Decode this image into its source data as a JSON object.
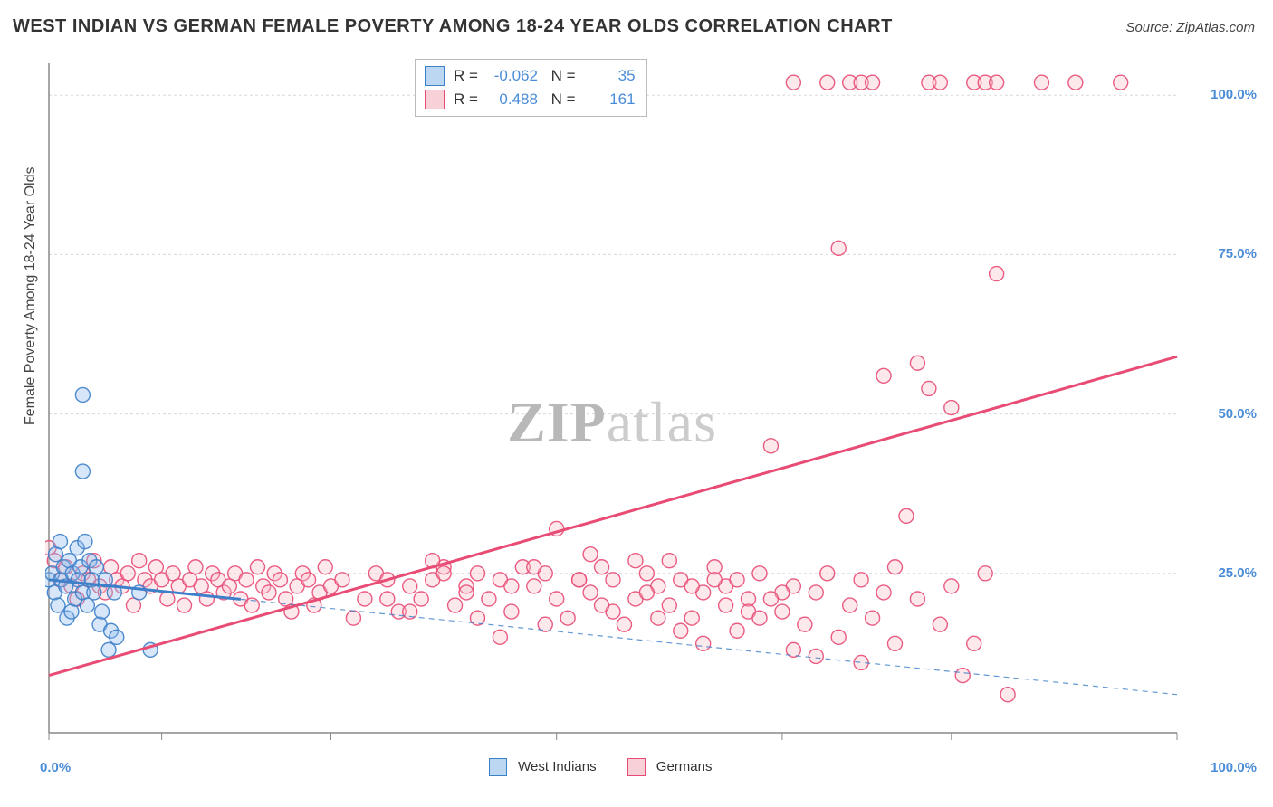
{
  "title": "WEST INDIAN VS GERMAN FEMALE POVERTY AMONG 18-24 YEAR OLDS CORRELATION CHART",
  "source": "Source: ZipAtlas.com",
  "ylabel": "Female Poverty Among 18-24 Year Olds",
  "watermark_a": "ZIP",
  "watermark_b": "atlas",
  "chart": {
    "type": "scatter",
    "xlim": [
      0,
      100
    ],
    "ylim": [
      0,
      105
    ],
    "x_ticks": [
      0,
      10,
      25,
      45,
      65,
      80,
      100
    ],
    "x_tick_labels": {
      "0": "0.0%",
      "100": "100.0%"
    },
    "y_ticks": [
      25,
      50,
      75,
      100
    ],
    "y_tick_labels": {
      "25": "25.0%",
      "50": "50.0%",
      "75": "75.0%",
      "100": "100.0%"
    },
    "grid_color": "#d8d8d8",
    "axis_color": "#888",
    "background_color": "#ffffff",
    "marker_radius": 8,
    "marker_opacity": 0.35,
    "series": [
      {
        "name": "West Indians",
        "label": "West Indians",
        "fill": "#8cb9ed",
        "stroke": "#3d7fc9",
        "swatch_fill": "#bcd7f2",
        "swatch_stroke": "#3d7fc9",
        "R": "-0.062",
        "N": "35",
        "trend": {
          "x1": 0,
          "y1": 24,
          "x2": 100,
          "y2": 6,
          "solid_to_x": 17,
          "stroke_width": 3
        },
        "points": [
          [
            0,
            24
          ],
          [
            0.3,
            25
          ],
          [
            0.5,
            22
          ],
          [
            0.6,
            28
          ],
          [
            0.8,
            20
          ],
          [
            1,
            30
          ],
          [
            1.1,
            24
          ],
          [
            1.3,
            26
          ],
          [
            1.5,
            23
          ],
          [
            1.6,
            18
          ],
          [
            1.8,
            27
          ],
          [
            2,
            19
          ],
          [
            2.1,
            25
          ],
          [
            2.3,
            21
          ],
          [
            2.5,
            29
          ],
          [
            2.6,
            24
          ],
          [
            2.8,
            26
          ],
          [
            3,
            22
          ],
          [
            3.2,
            30
          ],
          [
            3.4,
            20
          ],
          [
            3.6,
            27
          ],
          [
            3.8,
            24
          ],
          [
            4,
            22
          ],
          [
            4.2,
            26
          ],
          [
            4.5,
            17
          ],
          [
            4.7,
            19
          ],
          [
            5,
            24
          ],
          [
            5.3,
            13
          ],
          [
            5.5,
            16
          ],
          [
            5.8,
            22
          ],
          [
            3,
            41
          ],
          [
            3,
            53
          ],
          [
            9,
            13
          ],
          [
            6,
            15
          ],
          [
            8,
            22
          ]
        ]
      },
      {
        "name": "Germans",
        "label": "Germans",
        "fill": "#f8bcc8",
        "stroke": "#e84b74",
        "swatch_fill": "#f8d0d8",
        "swatch_stroke": "#e84b74",
        "R": "0.488",
        "N": "161",
        "trend": {
          "x1": 0,
          "y1": 9,
          "x2": 100,
          "y2": 59,
          "solid_to_x": 100,
          "stroke_width": 3
        },
        "points": [
          [
            0,
            29
          ],
          [
            0.5,
            27
          ],
          [
            1,
            24
          ],
          [
            1.5,
            26
          ],
          [
            2,
            23
          ],
          [
            2.5,
            21
          ],
          [
            3,
            25
          ],
          [
            3.5,
            24
          ],
          [
            4,
            27
          ],
          [
            4.5,
            23
          ],
          [
            5,
            22
          ],
          [
            5.5,
            26
          ],
          [
            6,
            24
          ],
          [
            6.5,
            23
          ],
          [
            7,
            25
          ],
          [
            7.5,
            20
          ],
          [
            8,
            27
          ],
          [
            8.5,
            24
          ],
          [
            9,
            23
          ],
          [
            9.5,
            26
          ],
          [
            10,
            24
          ],
          [
            10.5,
            21
          ],
          [
            11,
            25
          ],
          [
            11.5,
            23
          ],
          [
            12,
            20
          ],
          [
            12.5,
            24
          ],
          [
            13,
            26
          ],
          [
            13.5,
            23
          ],
          [
            14,
            21
          ],
          [
            14.5,
            25
          ],
          [
            15,
            24
          ],
          [
            15.5,
            22
          ],
          [
            16,
            23
          ],
          [
            16.5,
            25
          ],
          [
            17,
            21
          ],
          [
            17.5,
            24
          ],
          [
            18,
            20
          ],
          [
            18.5,
            26
          ],
          [
            19,
            23
          ],
          [
            19.5,
            22
          ],
          [
            20,
            25
          ],
          [
            20.5,
            24
          ],
          [
            21,
            21
          ],
          [
            21.5,
            19
          ],
          [
            22,
            23
          ],
          [
            22.5,
            25
          ],
          [
            23,
            24
          ],
          [
            23.5,
            20
          ],
          [
            24,
            22
          ],
          [
            24.5,
            26
          ],
          [
            25,
            23
          ],
          [
            26,
            24
          ],
          [
            27,
            18
          ],
          [
            28,
            21
          ],
          [
            29,
            25
          ],
          [
            30,
            24
          ],
          [
            31,
            19
          ],
          [
            32,
            23
          ],
          [
            33,
            21
          ],
          [
            34,
            24
          ],
          [
            35,
            26
          ],
          [
            36,
            20
          ],
          [
            37,
            23
          ],
          [
            38,
            25
          ],
          [
            39,
            21
          ],
          [
            40,
            24
          ],
          [
            41,
            19
          ],
          [
            42,
            26
          ],
          [
            43,
            23
          ],
          [
            44,
            25
          ],
          [
            45,
            21
          ],
          [
            46,
            18
          ],
          [
            47,
            24
          ],
          [
            48,
            22
          ],
          [
            49,
            26
          ],
          [
            50,
            24
          ],
          [
            51,
            17
          ],
          [
            52,
            21
          ],
          [
            53,
            25
          ],
          [
            54,
            23
          ],
          [
            55,
            20
          ],
          [
            56,
            24
          ],
          [
            57,
            18
          ],
          [
            58,
            22
          ],
          [
            59,
            26
          ],
          [
            60,
            23
          ],
          [
            61,
            16
          ],
          [
            62,
            21
          ],
          [
            63,
            25
          ],
          [
            64,
            45
          ],
          [
            65,
            19
          ],
          [
            66,
            23
          ],
          [
            66,
            13
          ],
          [
            67,
            17
          ],
          [
            68,
            22
          ],
          [
            68,
            12
          ],
          [
            69,
            25
          ],
          [
            70,
            15
          ],
          [
            71,
            20
          ],
          [
            72,
            11
          ],
          [
            72,
            24
          ],
          [
            73,
            18
          ],
          [
            74,
            22
          ],
          [
            74,
            56
          ],
          [
            75,
            26
          ],
          [
            75,
            14
          ],
          [
            76,
            34
          ],
          [
            77,
            21
          ],
          [
            77,
            58
          ],
          [
            78,
            54
          ],
          [
            79,
            17
          ],
          [
            80,
            23
          ],
          [
            80,
            51
          ],
          [
            81,
            9
          ],
          [
            82,
            14
          ],
          [
            83,
            25
          ],
          [
            84,
            72
          ],
          [
            85,
            6
          ],
          [
            70,
            76
          ],
          [
            66,
            102
          ],
          [
            69,
            102
          ],
          [
            71,
            102
          ],
          [
            72,
            102
          ],
          [
            73,
            102
          ],
          [
            78,
            102
          ],
          [
            79,
            102
          ],
          [
            82,
            102
          ],
          [
            83,
            102
          ],
          [
            84,
            102
          ],
          [
            88,
            102
          ],
          [
            91,
            102
          ],
          [
            95,
            102
          ],
          [
            30,
            21
          ],
          [
            32,
            19
          ],
          [
            35,
            25
          ],
          [
            38,
            18
          ],
          [
            41,
            23
          ],
          [
            44,
            17
          ],
          [
            47,
            24
          ],
          [
            50,
            19
          ],
          [
            53,
            22
          ],
          [
            56,
            16
          ],
          [
            59,
            24
          ],
          [
            62,
            19
          ],
          [
            65,
            22
          ],
          [
            45,
            32
          ],
          [
            48,
            28
          ],
          [
            34,
            27
          ],
          [
            40,
            15
          ],
          [
            58,
            14
          ],
          [
            52,
            27
          ],
          [
            49,
            20
          ],
          [
            37,
            22
          ],
          [
            43,
            26
          ],
          [
            54,
            18
          ],
          [
            57,
            23
          ],
          [
            60,
            20
          ],
          [
            63,
            18
          ],
          [
            55,
            27
          ],
          [
            61,
            24
          ],
          [
            64,
            21
          ]
        ]
      }
    ]
  },
  "legend_bottom": {
    "west": "West Indians",
    "german": "Germans"
  }
}
